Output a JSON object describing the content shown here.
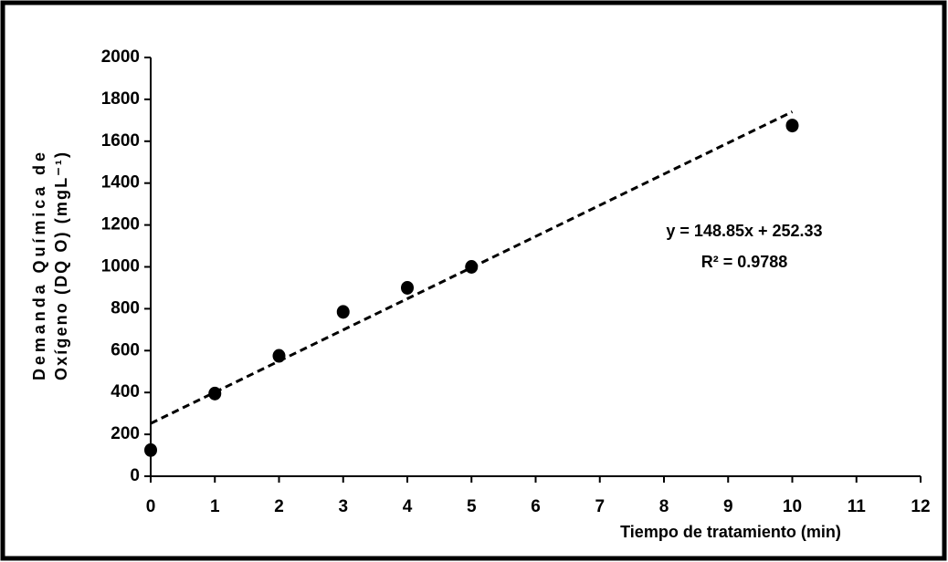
{
  "chart_data": {
    "type": "scatter",
    "x": [
      0,
      1,
      2,
      3,
      4,
      5,
      10
    ],
    "values": [
      125,
      395,
      575,
      785,
      900,
      1000,
      1675
    ],
    "color": "#000000",
    "xlim": [
      0,
      12
    ],
    "xticks": [
      0,
      1,
      2,
      3,
      4,
      5,
      6,
      7,
      8,
      9,
      10,
      11,
      12
    ],
    "ylim": [
      0,
      2000
    ],
    "yticks": [
      0,
      200,
      400,
      600,
      800,
      1000,
      1200,
      1400,
      1600,
      1800,
      2000
    ],
    "xlabel": "Tiempo de tratamiento (min)",
    "ylabel": [
      "Demanda    Química    de",
      "Oxígeno (DQ O)  (mgL⁻¹)"
    ],
    "trendline": {
      "slope": 148.85,
      "intercept": 252.33,
      "xrange": [
        0,
        10
      ],
      "equation": "y = 148.85x + 252.33",
      "r2": "R² = 0.9788"
    },
    "grid": false
  }
}
